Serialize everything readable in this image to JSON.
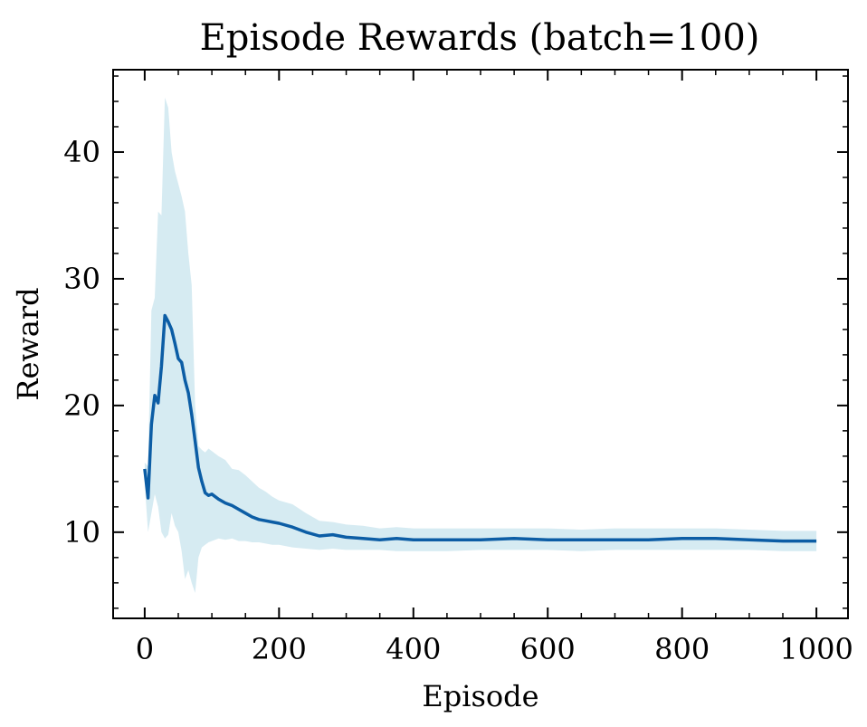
{
  "chart_data": {
    "type": "line",
    "title": "Episode Rewards (batch=100)",
    "xlabel": "Episode",
    "ylabel": "Reward",
    "xlim": [
      -47,
      1047
    ],
    "ylim": [
      3.2,
      46.5
    ],
    "xticks": [
      0,
      200,
      400,
      600,
      800,
      1000
    ],
    "xtick_labels": [
      "0",
      "200",
      "400",
      "600",
      "800",
      "1000"
    ],
    "yticks": [
      10,
      20,
      30,
      40
    ],
    "ytick_labels": [
      "10",
      "20",
      "30",
      "40"
    ],
    "grid": false,
    "legend": "none",
    "colors": {
      "line": "#0c5da5",
      "band": "#add8e6"
    },
    "x": [
      0,
      5,
      10,
      15,
      20,
      25,
      30,
      35,
      40,
      45,
      50,
      55,
      60,
      65,
      70,
      75,
      80,
      85,
      90,
      95,
      100,
      110,
      120,
      130,
      140,
      150,
      160,
      170,
      180,
      190,
      200,
      220,
      240,
      260,
      280,
      300,
      325,
      350,
      375,
      400,
      450,
      500,
      550,
      600,
      650,
      700,
      750,
      800,
      850,
      900,
      950,
      1000
    ],
    "series": [
      {
        "values": [
          15.0,
          12.7,
          18.5,
          20.8,
          20.2,
          23.1,
          27.1,
          26.6,
          26.0,
          24.9,
          23.7,
          23.4,
          22.0,
          21.0,
          19.3,
          17.2,
          15.1,
          14.0,
          13.1,
          12.9,
          13.0,
          12.6,
          12.3,
          12.1,
          11.8,
          11.5,
          11.2,
          11.0,
          10.9,
          10.8,
          10.7,
          10.4,
          10.0,
          9.7,
          9.8,
          9.6,
          9.5,
          9.4,
          9.5,
          9.4,
          9.4,
          9.4,
          9.5,
          9.4,
          9.4,
          9.4,
          9.4,
          9.5,
          9.5,
          9.4,
          9.3,
          9.3
        ],
        "lower": [
          13.8,
          10.0,
          11.5,
          13.0,
          12.0,
          10.0,
          9.5,
          9.8,
          11.5,
          10.5,
          10.0,
          8.5,
          6.3,
          7.0,
          6.0,
          5.2,
          8.0,
          8.8,
          9.0,
          9.2,
          9.3,
          9.5,
          9.4,
          9.5,
          9.3,
          9.3,
          9.2,
          9.2,
          9.1,
          9.0,
          9.0,
          8.8,
          8.7,
          8.6,
          8.7,
          8.6,
          8.6,
          8.6,
          8.5,
          8.5,
          8.5,
          8.6,
          8.6,
          8.6,
          8.5,
          8.6,
          8.6,
          8.6,
          8.6,
          8.6,
          8.5,
          8.5
        ],
        "upper": [
          15.5,
          15.2,
          27.5,
          28.5,
          35.3,
          35.0,
          44.3,
          43.5,
          40.0,
          38.5,
          37.5,
          36.5,
          35.3,
          32.0,
          29.5,
          20.0,
          16.8,
          16.5,
          16.3,
          16.6,
          16.4,
          16.0,
          15.7,
          15.0,
          14.9,
          14.5,
          14.0,
          13.5,
          13.2,
          12.8,
          12.5,
          12.2,
          11.5,
          10.9,
          10.8,
          10.6,
          10.5,
          10.3,
          10.4,
          10.3,
          10.3,
          10.3,
          10.3,
          10.3,
          10.2,
          10.3,
          10.3,
          10.3,
          10.3,
          10.2,
          10.1,
          10.1
        ]
      }
    ]
  }
}
